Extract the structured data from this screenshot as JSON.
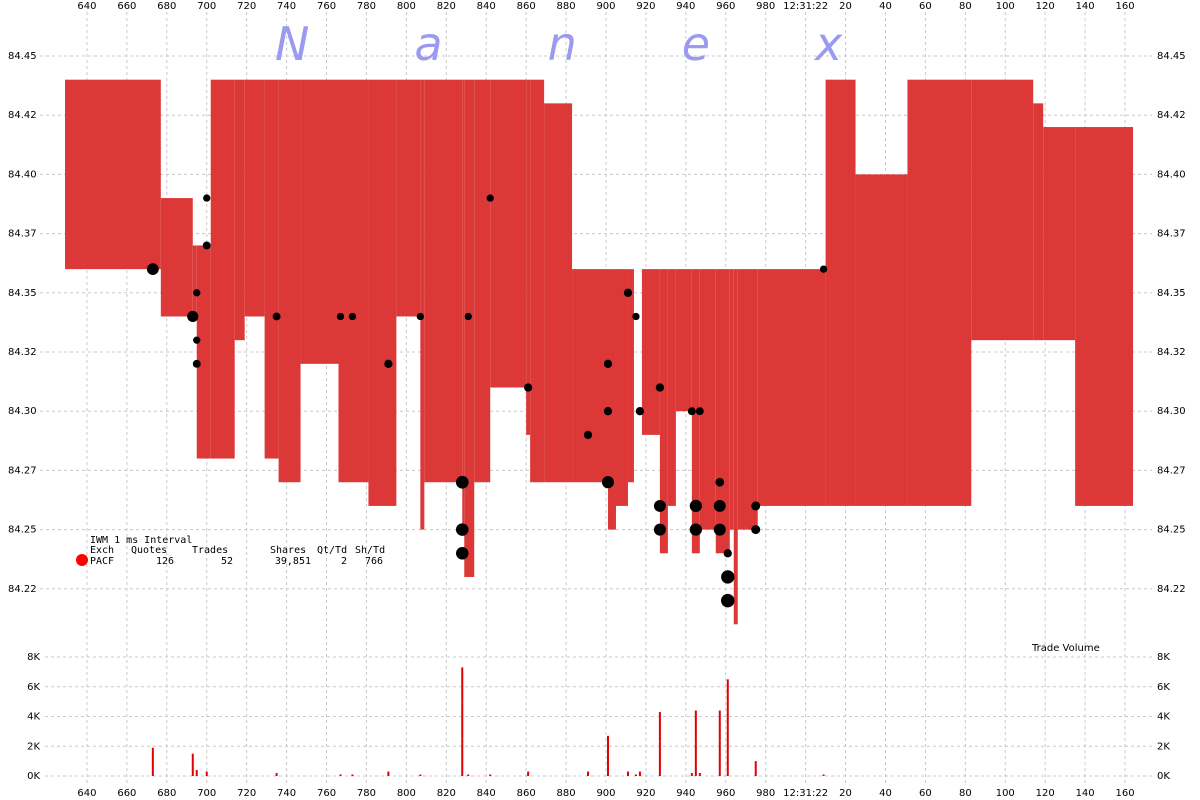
{
  "chart_data": {
    "type": "scatter",
    "watermark": "Nanex",
    "grid": true,
    "xlim": [
      629,
      1170
    ],
    "xticks": [
      640,
      660,
      680,
      700,
      720,
      740,
      760,
      780,
      800,
      820,
      840,
      860,
      880,
      900,
      920,
      940,
      960,
      980,
      {
        "value": 1000,
        "label": "12:31:22"
      },
      {
        "value": 1020,
        "label": "20"
      },
      {
        "value": 1040,
        "label": "40"
      },
      {
        "value": 1060,
        "label": "60"
      },
      {
        "value": 1080,
        "label": "80"
      },
      {
        "value": 1100,
        "label": "100"
      },
      {
        "value": 1120,
        "label": "120"
      },
      {
        "value": 1140,
        "label": "140"
      },
      {
        "value": 1160,
        "label": "160"
      }
    ],
    "ylim": [
      84.2,
      84.47
    ],
    "yticks": [
      {
        "value": 84.225,
        "label": "84.22"
      },
      84.25,
      {
        "value": 84.275,
        "label": "84.27"
      },
      {
        "value": 84.3,
        "label": "84.30"
      },
      {
        "value": 84.325,
        "label": "84.32"
      },
      84.35,
      {
        "value": 84.375,
        "label": "84.37"
      },
      {
        "value": 84.4,
        "label": "84.40"
      },
      {
        "value": 84.425,
        "label": "84.42"
      },
      84.45
    ],
    "quotes": {
      "color": "#dc3838",
      "x": [
        629,
        677,
        693,
        695,
        702,
        714,
        719,
        729,
        736,
        747,
        766,
        781,
        795,
        807,
        809,
        828,
        829,
        834,
        842,
        860,
        862,
        869,
        883,
        901,
        905,
        911,
        914,
        918,
        927,
        931,
        935,
        943,
        947,
        955,
        962,
        964,
        966,
        976,
        1010,
        1025,
        1051,
        1083,
        1114,
        1119,
        1135,
        1164
      ],
      "ask": [
        84.44,
        84.39,
        84.37,
        84.37,
        84.44,
        84.44,
        84.44,
        84.44,
        84.44,
        84.44,
        84.44,
        84.44,
        84.44,
        84.44,
        84.44,
        84.44,
        84.44,
        84.44,
        84.44,
        84.44,
        84.44,
        84.43,
        84.36,
        84.36,
        84.36,
        84.36,
        null,
        84.36,
        84.36,
        84.36,
        84.36,
        84.36,
        84.36,
        84.36,
        84.36,
        84.36,
        84.36,
        84.36,
        84.44,
        84.4,
        84.44,
        84.44,
        84.43,
        84.42,
        84.42,
        null
      ],
      "bid": [
        84.36,
        84.34,
        84.34,
        84.28,
        84.28,
        84.33,
        84.34,
        84.28,
        84.27,
        84.32,
        84.27,
        84.26,
        84.34,
        84.25,
        84.27,
        84.25,
        84.23,
        84.27,
        84.31,
        84.29,
        84.27,
        84.27,
        84.27,
        84.25,
        84.26,
        84.27,
        null,
        84.29,
        84.24,
        84.26,
        84.3,
        84.24,
        84.25,
        84.24,
        84.25,
        84.21,
        84.25,
        84.26,
        84.26,
        84.26,
        84.26,
        84.33,
        84.33,
        84.33,
        84.26,
        null
      ]
    },
    "trades": {
      "color": "#000000",
      "x": [
        673,
        693,
        695,
        695,
        695,
        700,
        700,
        735,
        767,
        773,
        791,
        807,
        828,
        828,
        828,
        831,
        842,
        861,
        891,
        901,
        901,
        901,
        911,
        915,
        917,
        927,
        927,
        927,
        943,
        945,
        945,
        947,
        957,
        957,
        957,
        961,
        961,
        961,
        975,
        975,
        1009
      ],
      "price": [
        84.36,
        84.34,
        84.35,
        84.33,
        84.32,
        84.39,
        84.37,
        84.34,
        84.34,
        84.34,
        84.32,
        84.34,
        84.27,
        84.25,
        84.24,
        84.34,
        84.39,
        84.31,
        84.29,
        84.32,
        84.3,
        84.27,
        84.35,
        84.34,
        84.3,
        84.31,
        84.26,
        84.25,
        84.3,
        84.26,
        84.25,
        84.3,
        84.27,
        84.26,
        84.25,
        84.24,
        84.23,
        84.22,
        84.26,
        84.25,
        84.36
      ],
      "size": [
        1900,
        1500,
        100,
        100,
        200,
        100,
        200,
        200,
        100,
        100,
        300,
        100,
        2500,
        2400,
        2400,
        100,
        100,
        300,
        300,
        300,
        300,
        2100,
        300,
        100,
        300,
        300,
        2000,
        2000,
        200,
        2200,
        2200,
        200,
        400,
        2000,
        2000,
        300,
        3000,
        3200,
        500,
        500,
        100
      ]
    },
    "volume_label": "Trade Volume",
    "volume_color": "#e00000",
    "volume_ylim": [
      0,
      8000
    ],
    "volume_yticks": [
      {
        "value": 0,
        "label": "0K"
      },
      {
        "value": 2000,
        "label": "2K"
      },
      {
        "value": 4000,
        "label": "4K"
      },
      {
        "value": 6000,
        "label": "6K"
      },
      {
        "value": 8000,
        "label": "8K"
      }
    ],
    "info": {
      "title": "IWM 1 ms Interval",
      "exchange_color": "#ff0000",
      "header": [
        "Exch",
        "Quotes",
        "Trades",
        "Shares",
        "Qt/Td",
        "Sh/Td"
      ],
      "row": [
        "PACF",
        "126",
        "52",
        "39,851",
        "2",
        "766"
      ]
    }
  }
}
